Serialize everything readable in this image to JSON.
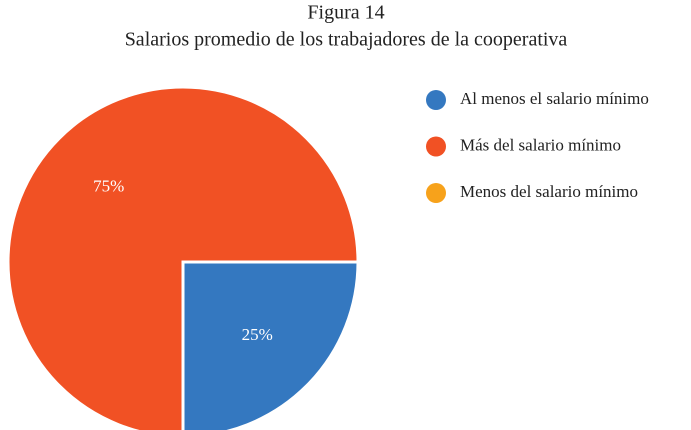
{
  "chart_data": {
    "type": "pie",
    "title": "Figura 14",
    "subtitle": "Salarios promedio de los trabajadores de la cooperativa",
    "categories": [
      "Al menos el salario mínimo",
      "Más del salario mínimo",
      "Menos del salario mínimo"
    ],
    "values": [
      25,
      75,
      0
    ],
    "value_labels": [
      "25%",
      "75%",
      null
    ],
    "colors": [
      "#3478c0",
      "#f15124",
      "#f7a21b"
    ],
    "legend": "right"
  }
}
